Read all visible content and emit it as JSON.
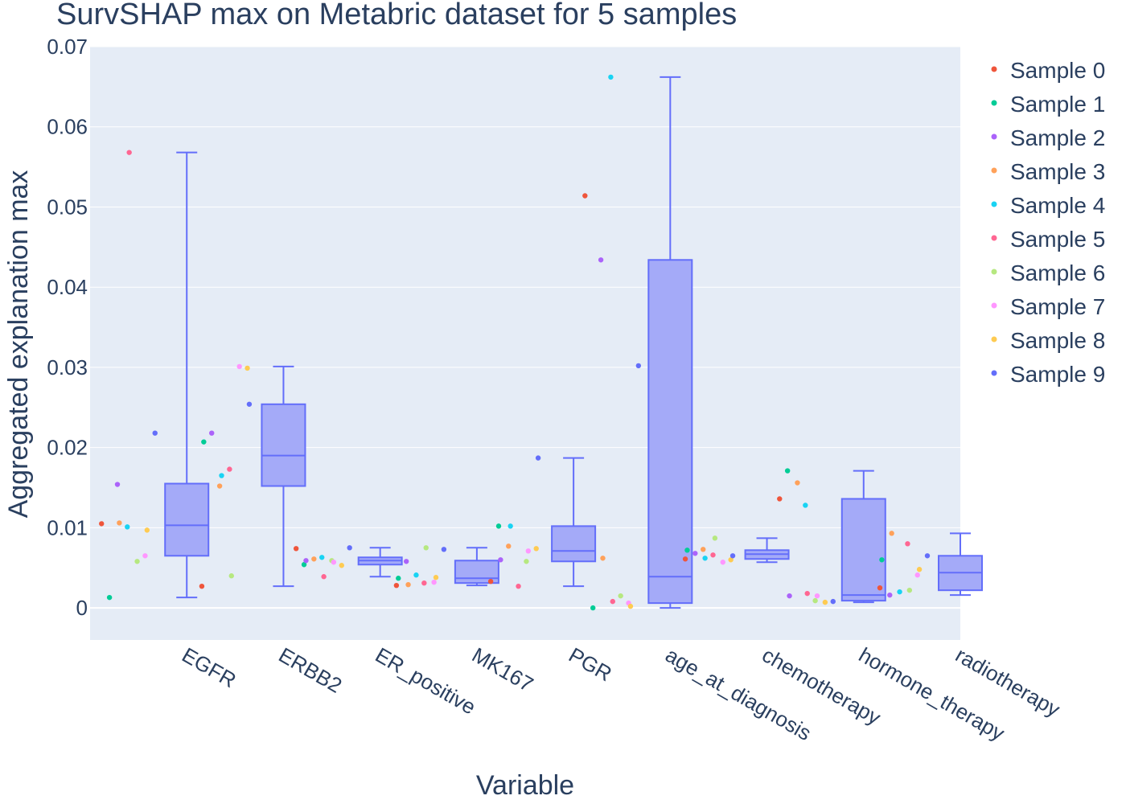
{
  "chart_data": {
    "type": "box",
    "title": "SurvSHAP max on Metabric dataset for 5 samples",
    "xlabel": "Variable",
    "ylabel": "Aggregated explanation max",
    "ylim": [
      -0.004,
      0.07
    ],
    "yticks": [
      0,
      0.01,
      0.02,
      0.03,
      0.04,
      0.05,
      0.06,
      0.07
    ],
    "ytick_labels": [
      "0",
      "0.01",
      "0.02",
      "0.03",
      "0.04",
      "0.05",
      "0.06",
      "0.07"
    ],
    "grid": true,
    "legend_position": "right",
    "colors": {
      "plot_bg": "#e5ecf6",
      "grid": "#ffffff",
      "box_line": "#636efa",
      "box_fill": "#a4aaf8",
      "text": "#2a3f5f"
    },
    "categories": [
      "EGFR",
      "ERBB2",
      "ER_positive",
      "MK167",
      "PGR",
      "age_at_diagnosis",
      "chemotherapy",
      "hormone_therapy",
      "radiotherapy"
    ],
    "boxes": [
      {
        "category": "EGFR",
        "min": 0.0013,
        "q1": 0.0065,
        "median": 0.0103,
        "q3": 0.0155,
        "max": 0.0568
      },
      {
        "category": "ERBB2",
        "min": 0.0027,
        "q1": 0.0152,
        "median": 0.019,
        "q3": 0.0254,
        "max": 0.0301
      },
      {
        "category": "ER_positive",
        "min": 0.0039,
        "q1": 0.0054,
        "median": 0.0059,
        "q3": 0.0063,
        "max": 0.0075
      },
      {
        "category": "MK167",
        "min": 0.0028,
        "q1": 0.0031,
        "median": 0.0037,
        "q3": 0.0059,
        "max": 0.0075
      },
      {
        "category": "PGR",
        "min": 0.0027,
        "q1": 0.0058,
        "median": 0.0071,
        "q3": 0.0102,
        "max": 0.0187
      },
      {
        "category": "age_at_diagnosis",
        "min": 0.0,
        "q1": 0.0006,
        "median": 0.0039,
        "q3": 0.0434,
        "max": 0.0662
      },
      {
        "category": "chemotherapy",
        "min": 0.0057,
        "q1": 0.0061,
        "median": 0.0067,
        "q3": 0.0072,
        "max": 0.0087
      },
      {
        "category": "hormone_therapy",
        "min": 0.0007,
        "q1": 0.0009,
        "median": 0.0016,
        "q3": 0.0136,
        "max": 0.0171
      },
      {
        "category": "radiotherapy",
        "min": 0.0016,
        "q1": 0.0022,
        "median": 0.0044,
        "q3": 0.0065,
        "max": 0.0093
      }
    ],
    "series": [
      {
        "name": "Sample 0",
        "color": "#ef553b",
        "values": [
          0.0105,
          0.0027,
          0.0074,
          0.0028,
          0.0033,
          0.0514,
          0.0061,
          0.0136,
          0.0025
        ]
      },
      {
        "name": "Sample 1",
        "color": "#00cc96",
        "values": [
          0.0013,
          0.0207,
          0.0054,
          0.0037,
          0.0102,
          0.0,
          0.0072,
          0.0171,
          0.006
        ]
      },
      {
        "name": "Sample 2",
        "color": "#ab63fa",
        "values": [
          0.0154,
          0.0218,
          0.0059,
          0.0058,
          0.006,
          0.0434,
          0.0068,
          0.0015,
          0.0016
        ]
      },
      {
        "name": "Sample 3",
        "color": "#ffa15a",
        "values": [
          0.0106,
          0.0152,
          0.0061,
          0.0029,
          0.0077,
          0.0062,
          0.0073,
          0.0156,
          0.0093
        ]
      },
      {
        "name": "Sample 4",
        "color": "#19d3f3",
        "values": [
          0.0101,
          0.0165,
          0.0063,
          0.0041,
          0.0102,
          0.0662,
          0.0062,
          0.0128,
          0.002
        ]
      },
      {
        "name": "Sample 5",
        "color": "#ff6692",
        "values": [
          0.0568,
          0.0173,
          0.0039,
          0.0031,
          0.0027,
          0.0008,
          0.0066,
          0.0018,
          0.008
        ]
      },
      {
        "name": "Sample 6",
        "color": "#b6e880",
        "values": [
          0.0058,
          0.004,
          0.0059,
          0.0075,
          0.0058,
          0.0015,
          0.0087,
          0.0009,
          0.0022
        ]
      },
      {
        "name": "Sample 7",
        "color": "#ff97ff",
        "values": [
          0.0065,
          0.0301,
          0.0057,
          0.0032,
          0.0071,
          0.0006,
          0.0057,
          0.0015,
          0.0041
        ]
      },
      {
        "name": "Sample 8",
        "color": "#fecb52",
        "values": [
          0.0097,
          0.0299,
          0.0053,
          0.0038,
          0.0074,
          0.0002,
          0.006,
          0.0007,
          0.0048
        ]
      },
      {
        "name": "Sample 9",
        "color": "#636efa",
        "values": [
          0.0218,
          0.0254,
          0.0075,
          0.0073,
          0.0187,
          0.0302,
          0.0065,
          0.0008,
          0.0065
        ]
      }
    ]
  }
}
